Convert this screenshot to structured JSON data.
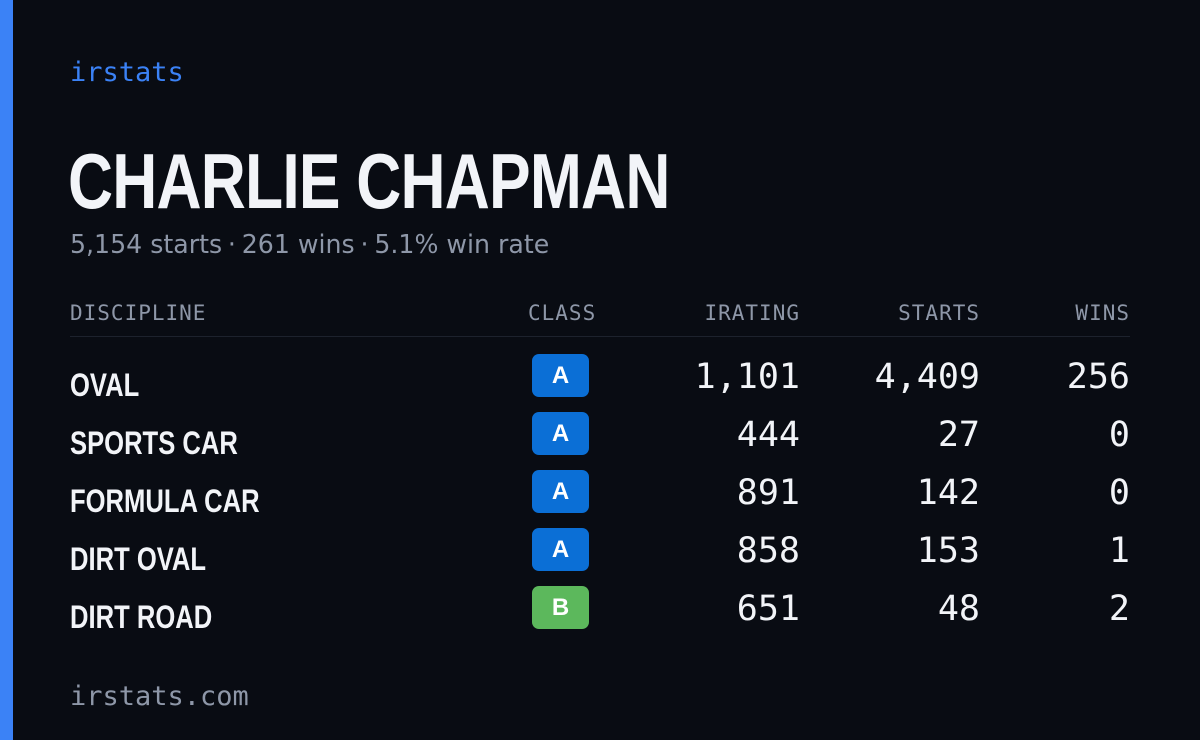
{
  "brand": "irstats",
  "player": {
    "name": "CHARLIE CHAPMAN",
    "summary": {
      "starts": "5,154 starts",
      "wins": "261 wins",
      "win_rate": "5.1% win rate",
      "separator": "·"
    }
  },
  "table": {
    "headers": {
      "discipline": "DISCIPLINE",
      "class": "CLASS",
      "irating": "IRATING",
      "starts": "STARTS",
      "wins": "WINS"
    },
    "rows": [
      {
        "discipline": "OVAL",
        "class": "A",
        "irating": "1,101",
        "starts": "4,409",
        "wins": "256"
      },
      {
        "discipline": "SPORTS CAR",
        "class": "A",
        "irating": "444",
        "starts": "27",
        "wins": "0"
      },
      {
        "discipline": "FORMULA CAR",
        "class": "A",
        "irating": "891",
        "starts": "142",
        "wins": "0"
      },
      {
        "discipline": "DIRT OVAL",
        "class": "A",
        "irating": "858",
        "starts": "153",
        "wins": "1"
      },
      {
        "discipline": "DIRT ROAD",
        "class": "B",
        "irating": "651",
        "starts": "48",
        "wins": "2"
      }
    ]
  },
  "class_colors": {
    "A": "#0b6fd6",
    "B": "#5cb85c"
  },
  "colors": {
    "accent": "#3b82f6",
    "background": "#090c13"
  },
  "footer": "irstats.com"
}
